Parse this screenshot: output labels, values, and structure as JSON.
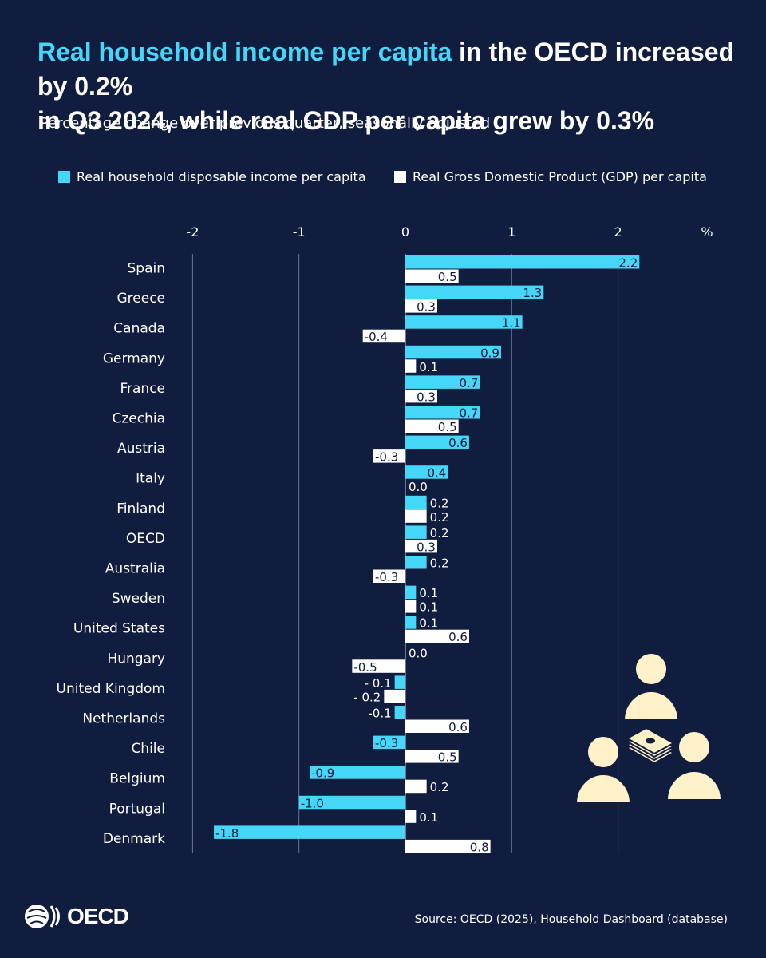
{
  "header": {
    "title_highlight": "Real household income per capita",
    "title_rest_line1": " in the OECD increased by 0.2%",
    "title_line2": "in Q3 2024, while real GDP per capita grew by 0.3%",
    "subtitle": "Percentage change over previous quarter, seasonally adjusted"
  },
  "legend": {
    "series1": "Real household disposable income per capita",
    "series2": "Real Gross Domestic Product (GDP) per capita"
  },
  "colors": {
    "background": "#111d3e",
    "income": "#46d6f8",
    "gdp": "#ffffff",
    "illustration": "#fff2c8",
    "gridline": "#6b7591"
  },
  "chart_data": {
    "type": "bar",
    "orientation": "horizontal",
    "categories": [
      "Spain",
      "Greece",
      "Canada",
      "Germany",
      "France",
      "Czechia",
      "Austria",
      "Italy",
      "Finland",
      "OECD",
      "Australia",
      "Sweden",
      "United States",
      "Hungary",
      "United Kingdom",
      "Netherlands",
      "Chile",
      "Belgium",
      "Portugal",
      "Denmark"
    ],
    "series": [
      {
        "name": "Real household disposable income per capita",
        "values": [
          2.2,
          1.3,
          1.1,
          0.9,
          0.7,
          0.7,
          0.6,
          0.4,
          0.2,
          0.2,
          0.2,
          0.1,
          0.1,
          0.0,
          -0.1,
          -0.1,
          -0.3,
          -0.9,
          -1.0,
          -1.8
        ]
      },
      {
        "name": "Real Gross Domestic Product (GDP) per capita",
        "values": [
          0.5,
          0.3,
          -0.4,
          0.1,
          0.3,
          0.5,
          -0.3,
          0.0,
          0.2,
          0.3,
          -0.3,
          0.1,
          0.6,
          -0.5,
          -0.2,
          0.6,
          0.5,
          0.2,
          0.1,
          0.8
        ]
      }
    ],
    "data_labels": {
      "series1": [
        "2.2",
        "1.3",
        "1.1",
        "0.9",
        "0.7",
        "0.7",
        "0.6",
        "0.4",
        "0.2",
        "0.2",
        "0.2",
        "0.1",
        "0.1",
        "0.0",
        "- 0.1",
        "-0.1",
        "-0.3",
        "-0.9",
        "-1.0",
        "-1.8"
      ],
      "series2": [
        "0.5",
        "0.3",
        "-0.4",
        "0.1",
        "0.3",
        "0.5",
        "-0.3",
        "0.0",
        "0.2",
        "0.3",
        "-0.3",
        "0.1",
        "0.6",
        "-0.5",
        "- 0.2",
        "0.6",
        "0.5",
        "0.2",
        "0.1",
        "0.8"
      ]
    },
    "x_ticks": [
      "-2",
      "-1",
      "0",
      "1",
      "2"
    ],
    "x_unit": "%",
    "xlim": [
      -2.5,
      2.75
    ],
    "grid": true,
    "legend_position": "top"
  },
  "footer": {
    "logo_text": "OECD",
    "source": "Source: OECD (2025), Household Dashboard (database)"
  }
}
